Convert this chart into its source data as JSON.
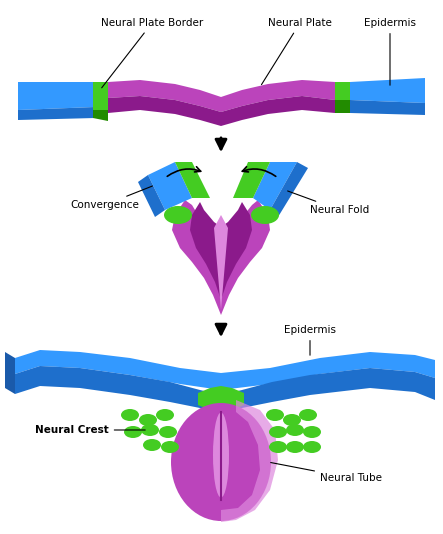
{
  "background_color": "#ffffff",
  "purple": "#BB44BB",
  "purple_dark": "#8B1A8B",
  "purple_light": "#DD88DD",
  "blue": "#3399FF",
  "blue_dark": "#1E6FCC",
  "blue_darker": "#1A5AAA",
  "green": "#44CC22",
  "green_dark": "#228B00",
  "black": "#000000",
  "labels": {
    "neural_plate_border": "Neural Plate Border",
    "neural_plate": "Neural Plate",
    "epidermis": "Epidermis",
    "convergence": "Convergence",
    "neural_fold": "Neural Fold",
    "epidermis2": "Epidermis",
    "neural_crest": "Neural Crest",
    "neural_tube": "Neural Tube"
  },
  "figsize": [
    4.43,
    5.34
  ],
  "dpi": 100
}
